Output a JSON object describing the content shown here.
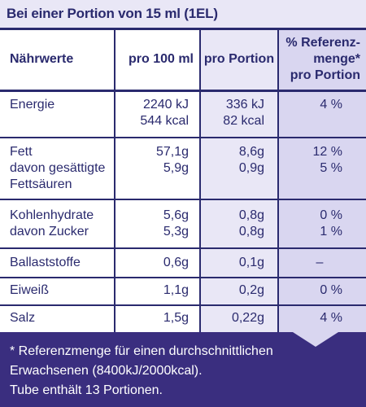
{
  "header": {
    "title": "Bei einer Portion von 15 ml (1EL)"
  },
  "columns": {
    "c1": "Nährwerte",
    "c2": "pro 100 ml",
    "c3": "pro Portion",
    "c4_line1": "% Referenz-",
    "c4_line2": "menge*",
    "c4_line3": "pro Portion"
  },
  "rows": {
    "energie": {
      "label": "Energie",
      "v100_1": "2240 kJ",
      "v100_2": "544 kcal",
      "vp_1": "336 kJ",
      "vp_2": "82 kcal",
      "ri": "4 %"
    },
    "fett": {
      "label1": "Fett",
      "label2": "davon gesättigte",
      "label3": "Fettsäuren",
      "v100_1": "57,1g",
      "v100_2": "5,9g",
      "vp_1": "8,6g",
      "vp_2": "0,9g",
      "ri_1": "12 %",
      "ri_2": "5 %"
    },
    "kh": {
      "label1": "Kohlenhydrate",
      "label2": "davon Zucker",
      "v100_1": "5,6g",
      "v100_2": "5,3g",
      "vp_1": "0,8g",
      "vp_2": "0,8g",
      "ri_1": "0 %",
      "ri_2": "1 %"
    },
    "ballast": {
      "label": "Ballaststoffe",
      "v100": "0,6g",
      "vp": "0,1g",
      "ri": "–"
    },
    "eiweiss": {
      "label": "Eiweiß",
      "v100": "1,1g",
      "vp": "0,2g",
      "ri": "0 %"
    },
    "salz": {
      "label": "Salz",
      "v100": "1,5g",
      "vp": "0,22g",
      "ri": "4 %"
    }
  },
  "footer": {
    "line1": "* Referenzmenge für einen durchschnittlichen",
    "line2": "Erwachsenen (8400kJ/2000kcal).",
    "line3": "Tube enthält 13 Portionen."
  }
}
